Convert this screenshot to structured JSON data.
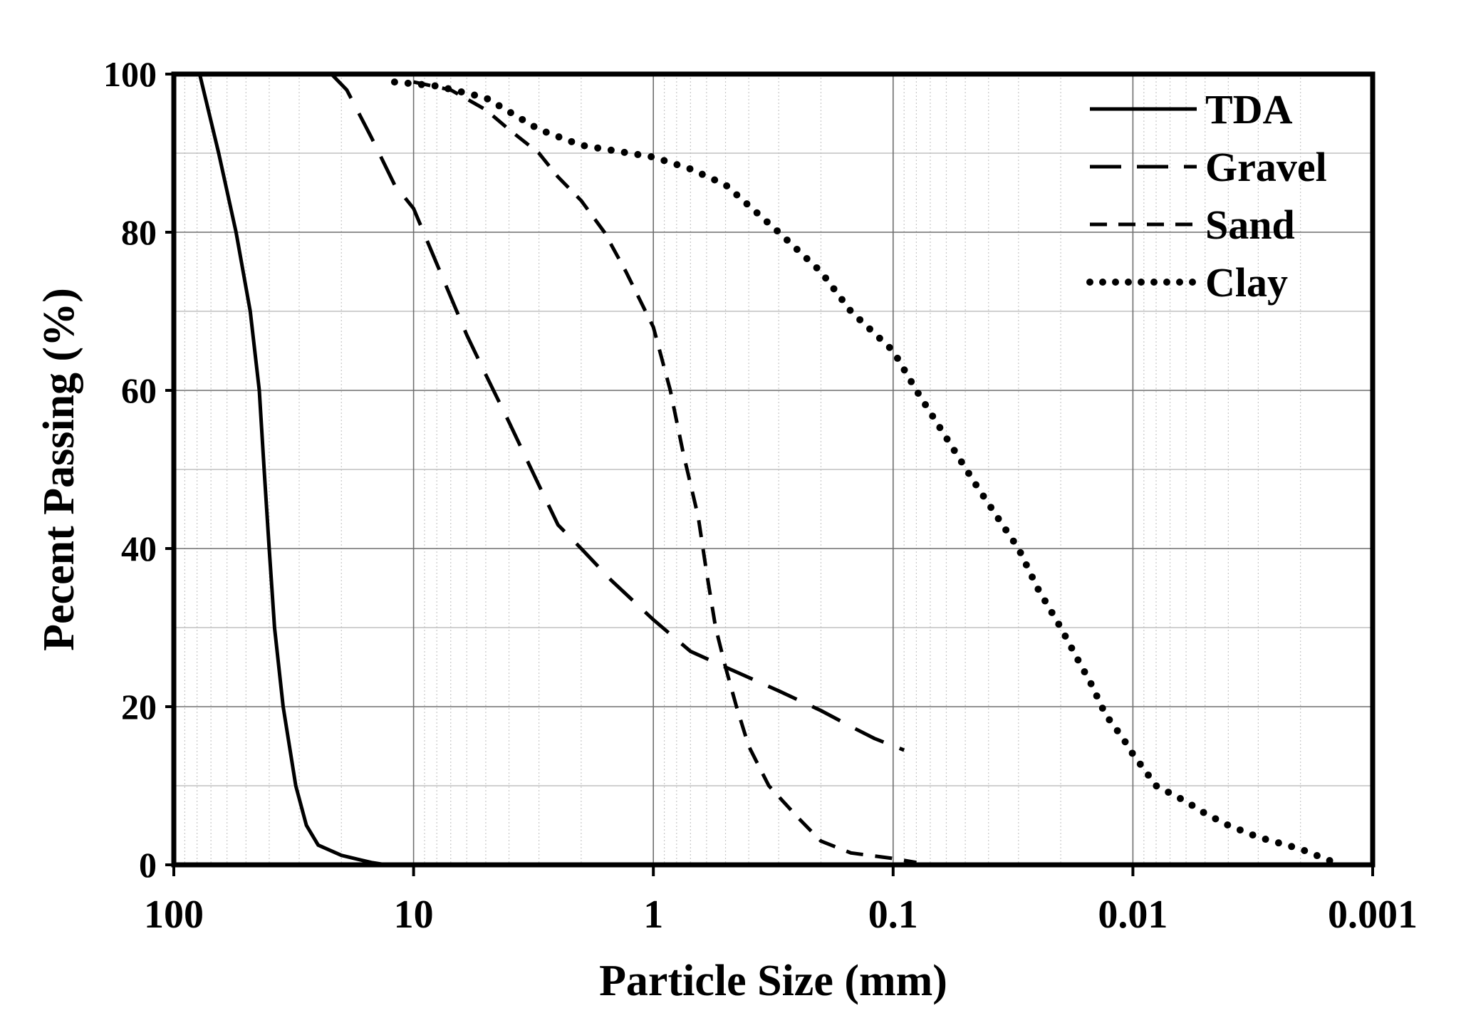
{
  "chart_data": {
    "type": "line",
    "title": "",
    "xlabel": "Particle Size (mm)",
    "ylabel": "Pecent Passing (%)",
    "x_scale": "log",
    "x_reversed": true,
    "xlim": [
      100,
      0.001
    ],
    "ylim": [
      0,
      100
    ],
    "x_ticks": [
      100,
      10,
      1,
      0.1,
      0.01,
      0.001
    ],
    "x_tick_labels": [
      "100",
      "10",
      "1",
      "0.1",
      "0.01",
      "0.001"
    ],
    "y_ticks": [
      0,
      20,
      40,
      60,
      80,
      100
    ],
    "y_tick_labels": [
      "0",
      "20",
      "40",
      "60",
      "80",
      "100"
    ],
    "grid": true,
    "legend": "top-right",
    "series": [
      {
        "name": "TDA",
        "style": "solid",
        "points": [
          [
            78,
            100
          ],
          [
            65,
            90
          ],
          [
            55,
            80
          ],
          [
            48,
            70
          ],
          [
            44,
            60
          ],
          [
            42,
            50
          ],
          [
            40,
            40
          ],
          [
            38,
            30
          ],
          [
            35,
            20
          ],
          [
            31,
            10
          ],
          [
            28,
            5
          ],
          [
            25,
            2.5
          ],
          [
            20,
            1.2
          ],
          [
            15,
            0.3
          ],
          [
            13,
            0
          ]
        ]
      },
      {
        "name": "Gravel",
        "style": "longdash",
        "points": [
          [
            22,
            100
          ],
          [
            19,
            98
          ],
          [
            15,
            92
          ],
          [
            12,
            86
          ],
          [
            10,
            83
          ],
          [
            8,
            76
          ],
          [
            6,
            67
          ],
          [
            5,
            62
          ],
          [
            4,
            56
          ],
          [
            3,
            48
          ],
          [
            2.5,
            43
          ],
          [
            2,
            40
          ],
          [
            1.5,
            36
          ],
          [
            1,
            31
          ],
          [
            0.7,
            27
          ],
          [
            0.5,
            25
          ],
          [
            0.3,
            22
          ],
          [
            0.2,
            19.5
          ],
          [
            0.15,
            17.5
          ],
          [
            0.12,
            16
          ],
          [
            0.09,
            14.5
          ]
        ]
      },
      {
        "name": "Sand",
        "style": "shortdash",
        "points": [
          [
            10,
            99
          ],
          [
            7,
            98
          ],
          [
            5,
            95.5
          ],
          [
            4,
            93
          ],
          [
            3,
            90
          ],
          [
            2.5,
            87
          ],
          [
            2,
            84
          ],
          [
            1.6,
            80
          ],
          [
            1.3,
            75
          ],
          [
            1,
            68
          ],
          [
            0.85,
            60
          ],
          [
            0.75,
            52
          ],
          [
            0.65,
            44
          ],
          [
            0.6,
            37
          ],
          [
            0.55,
            30
          ],
          [
            0.5,
            25
          ],
          [
            0.45,
            20
          ],
          [
            0.4,
            15
          ],
          [
            0.33,
            10
          ],
          [
            0.25,
            6
          ],
          [
            0.2,
            3
          ],
          [
            0.15,
            1.5
          ],
          [
            0.1,
            0.8
          ],
          [
            0.08,
            0.3
          ]
        ]
      },
      {
        "name": "Clay",
        "style": "dotted",
        "points": [
          [
            12,
            99
          ],
          [
            8,
            98.5
          ],
          [
            5,
            97
          ],
          [
            3,
            93
          ],
          [
            2,
            91
          ],
          [
            1,
            89.5
          ],
          [
            0.7,
            88
          ],
          [
            0.5,
            86
          ],
          [
            0.3,
            80
          ],
          [
            0.2,
            75
          ],
          [
            0.15,
            70
          ],
          [
            0.1,
            65
          ],
          [
            0.08,
            60
          ],
          [
            0.06,
            54
          ],
          [
            0.045,
            48
          ],
          [
            0.035,
            43
          ],
          [
            0.03,
            40
          ],
          [
            0.025,
            35
          ],
          [
            0.02,
            30
          ],
          [
            0.017,
            26
          ],
          [
            0.015,
            23
          ],
          [
            0.013,
            19
          ],
          [
            0.011,
            16
          ],
          [
            0.01,
            14
          ],
          [
            0.008,
            10
          ],
          [
            0.006,
            8
          ],
          [
            0.005,
            6.5
          ],
          [
            0.004,
            5
          ],
          [
            0.003,
            3.5
          ],
          [
            0.002,
            2
          ],
          [
            0.0015,
            0.5
          ]
        ]
      }
    ]
  }
}
